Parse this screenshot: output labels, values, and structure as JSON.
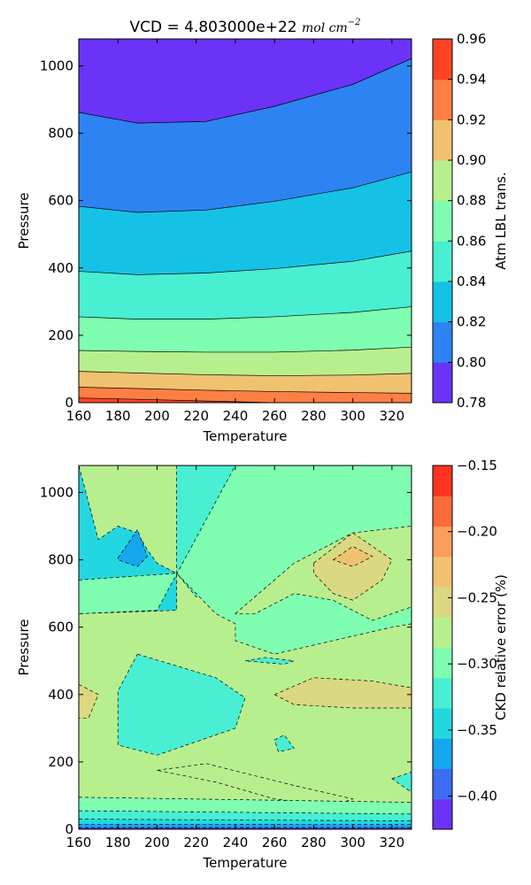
{
  "chart_data": [
    {
      "type": "heatmap",
      "title_prefix": "VCD = 4.803000e+22 ",
      "title_math": "mol cm",
      "title_sup": "−2",
      "xlabel": "Temperature",
      "ylabel": "Pressure",
      "xlim": [
        160,
        330
      ],
      "ylim": [
        0,
        1080
      ],
      "x_ticks": [
        160,
        180,
        200,
        220,
        240,
        260,
        280,
        300,
        320
      ],
      "y_ticks": [
        0,
        200,
        400,
        600,
        800,
        1000
      ],
      "colorbar": {
        "label": "Atm LBL trans.",
        "levels": [
          0.78,
          0.8,
          0.82,
          0.84,
          0.86,
          0.88,
          0.9,
          0.92,
          0.94,
          0.96
        ],
        "tick_labels": [
          "0.78",
          "0.80",
          "0.82",
          "0.84",
          "0.86",
          "0.88",
          "0.90",
          "0.92",
          "0.94",
          "0.96"
        ],
        "colors": [
          "#6a33f7",
          "#2e83f2",
          "#15c2e6",
          "#48efd2",
          "#7ffdb0",
          "#b8ef8e",
          "#f0c270",
          "#fe7f44",
          "#ff4426"
        ]
      },
      "contours": [
        {
          "level": 0.8,
          "x": [
            160,
            190,
            225,
            260,
            300,
            330
          ],
          "y": [
            862,
            830,
            835,
            880,
            945,
            1022
          ]
        },
        {
          "level": 0.82,
          "x": [
            160,
            190,
            225,
            260,
            300,
            330
          ],
          "y": [
            583,
            565,
            572,
            598,
            638,
            685
          ]
        },
        {
          "level": 0.84,
          "x": [
            160,
            190,
            225,
            260,
            300,
            330
          ],
          "y": [
            390,
            380,
            385,
            398,
            420,
            450
          ]
        },
        {
          "level": 0.86,
          "x": [
            160,
            190,
            225,
            260,
            300,
            330
          ],
          "y": [
            255,
            248,
            248,
            255,
            268,
            285
          ]
        },
        {
          "level": 0.88,
          "x": [
            160,
            190,
            225,
            260,
            300,
            330
          ],
          "y": [
            155,
            152,
            150,
            150,
            156,
            165
          ]
        },
        {
          "level": 0.9,
          "x": [
            160,
            190,
            225,
            260,
            300,
            330
          ],
          "y": [
            93,
            88,
            83,
            80,
            82,
            87
          ]
        },
        {
          "level": 0.92,
          "x": [
            160,
            190,
            225,
            260,
            300,
            330
          ],
          "y": [
            46,
            42,
            37,
            33,
            30,
            28
          ]
        },
        {
          "level": 0.94,
          "x": [
            160,
            190,
            225,
            260,
            300,
            330
          ],
          "y": [
            14,
            10,
            5,
            0,
            0,
            0
          ]
        }
      ]
    },
    {
      "type": "heatmap",
      "xlabel": "Temperature",
      "ylabel": "Pressure",
      "xlim": [
        160,
        330
      ],
      "ylim": [
        0,
        1080
      ],
      "x_ticks": [
        160,
        180,
        200,
        220,
        240,
        260,
        280,
        300,
        320
      ],
      "y_ticks": [
        0,
        200,
        400,
        600,
        800,
        1000
      ],
      "colorbar": {
        "label": "CKD relative error (%)",
        "levels": [
          -0.425,
          -0.4,
          -0.375,
          -0.35,
          -0.325,
          -0.3,
          -0.275,
          -0.25,
          -0.225,
          -0.2,
          -0.175,
          -0.15
        ],
        "tick_labels": [
          "−0.40",
          "−0.35",
          "−0.30",
          "−0.25",
          "−0.20",
          "−0.15"
        ],
        "tick_values": [
          -0.4,
          -0.35,
          -0.3,
          -0.25,
          -0.2,
          -0.15
        ],
        "colors": [
          "#6a33f7",
          "#3d6df5",
          "#14a7ee",
          "#23d7e0",
          "#48efd2",
          "#7ffdb0",
          "#b8ef8e",
          "#dad881",
          "#f0c270",
          "#fe9d5c",
          "#fe6a3c",
          "#ff3320"
        ]
      },
      "background_color": "#b8ef8e",
      "regions": [
        {
          "value": -0.337,
          "x": [
            160,
            160,
            210,
            210,
            200,
            195,
            190,
            180,
            170,
            160
          ],
          "y": [
            1080,
            640,
            650,
            760,
            790,
            830,
            880,
            900,
            860,
            1080
          ]
        },
        {
          "value": -0.312,
          "x": [
            210,
            240,
            280,
            260,
            240,
            220,
            210
          ],
          "y": [
            1080,
            1080,
            900,
            780,
            720,
            690,
            760
          ]
        },
        {
          "value": -0.362,
          "x": [
            180,
            190,
            195,
            190,
            180
          ],
          "y": [
            805,
            890,
            810,
            780,
            800
          ]
        },
        {
          "value": -0.287,
          "x": [
            160,
            210,
            220,
            230,
            240,
            240,
            260,
            320,
            330,
            330,
            240,
            200,
            160
          ],
          "y": [
            740,
            760,
            700,
            640,
            610,
            560,
            520,
            600,
            610,
            1080,
            1080,
            650,
            640
          ]
        },
        {
          "value": -0.262,
          "x": [
            240,
            270,
            300,
            330,
            330,
            320,
            310,
            300,
            290,
            270,
            250
          ],
          "y": [
            640,
            790,
            880,
            900,
            660,
            640,
            620,
            650,
            680,
            700,
            640
          ]
        },
        {
          "value": -0.237,
          "x": [
            280,
            300,
            320,
            315,
            300,
            290,
            280
          ],
          "y": [
            790,
            880,
            800,
            740,
            680,
            700,
            760
          ]
        },
        {
          "value": -0.212,
          "x": [
            290,
            300,
            310,
            300,
            290
          ],
          "y": [
            800,
            840,
            810,
            780,
            800
          ]
        },
        {
          "value": -0.312,
          "x": [
            190,
            230,
            245,
            240,
            200,
            180,
            180,
            190
          ],
          "y": [
            520,
            450,
            390,
            300,
            220,
            250,
            410,
            520
          ]
        },
        {
          "value": -0.237,
          "x": [
            160,
            170,
            165,
            160
          ],
          "y": [
            430,
            400,
            330,
            330
          ]
        },
        {
          "value": -0.237,
          "x": [
            260,
            280,
            310,
            330,
            330,
            300,
            270,
            260
          ],
          "y": [
            400,
            450,
            440,
            420,
            360,
            360,
            370,
            400
          ]
        },
        {
          "value": -0.312,
          "x": [
            245,
            255,
            270,
            265,
            245
          ],
          "y": [
            500,
            510,
            500,
            490,
            500
          ]
        },
        {
          "value": -0.312,
          "x": [
            260,
            265,
            270,
            262,
            260
          ],
          "y": [
            265,
            280,
            240,
            230,
            265
          ]
        },
        {
          "value": -0.262,
          "x": [
            200,
            225,
            270,
            300,
            290,
            260,
            230,
            200
          ],
          "y": [
            175,
            195,
            130,
            90,
            70,
            90,
            140,
            175
          ]
        },
        {
          "value": -0.312,
          "x": [
            320,
            330,
            330,
            320
          ],
          "y": [
            150,
            170,
            110,
            150
          ]
        }
      ],
      "bottom_bands": [
        {
          "value": -0.287,
          "x": [
            160,
            330
          ],
          "y": [
            95,
            80
          ]
        },
        {
          "value": -0.312,
          "x": [
            160,
            330
          ],
          "y": [
            55,
            45
          ]
        },
        {
          "value": -0.337,
          "x": [
            160,
            330
          ],
          "y": [
            30,
            25
          ]
        },
        {
          "value": -0.362,
          "x": [
            160,
            330
          ],
          "y": [
            15,
            14
          ]
        },
        {
          "value": -0.412,
          "x": [
            160,
            330
          ],
          "y": [
            5,
            5
          ]
        }
      ]
    }
  ]
}
